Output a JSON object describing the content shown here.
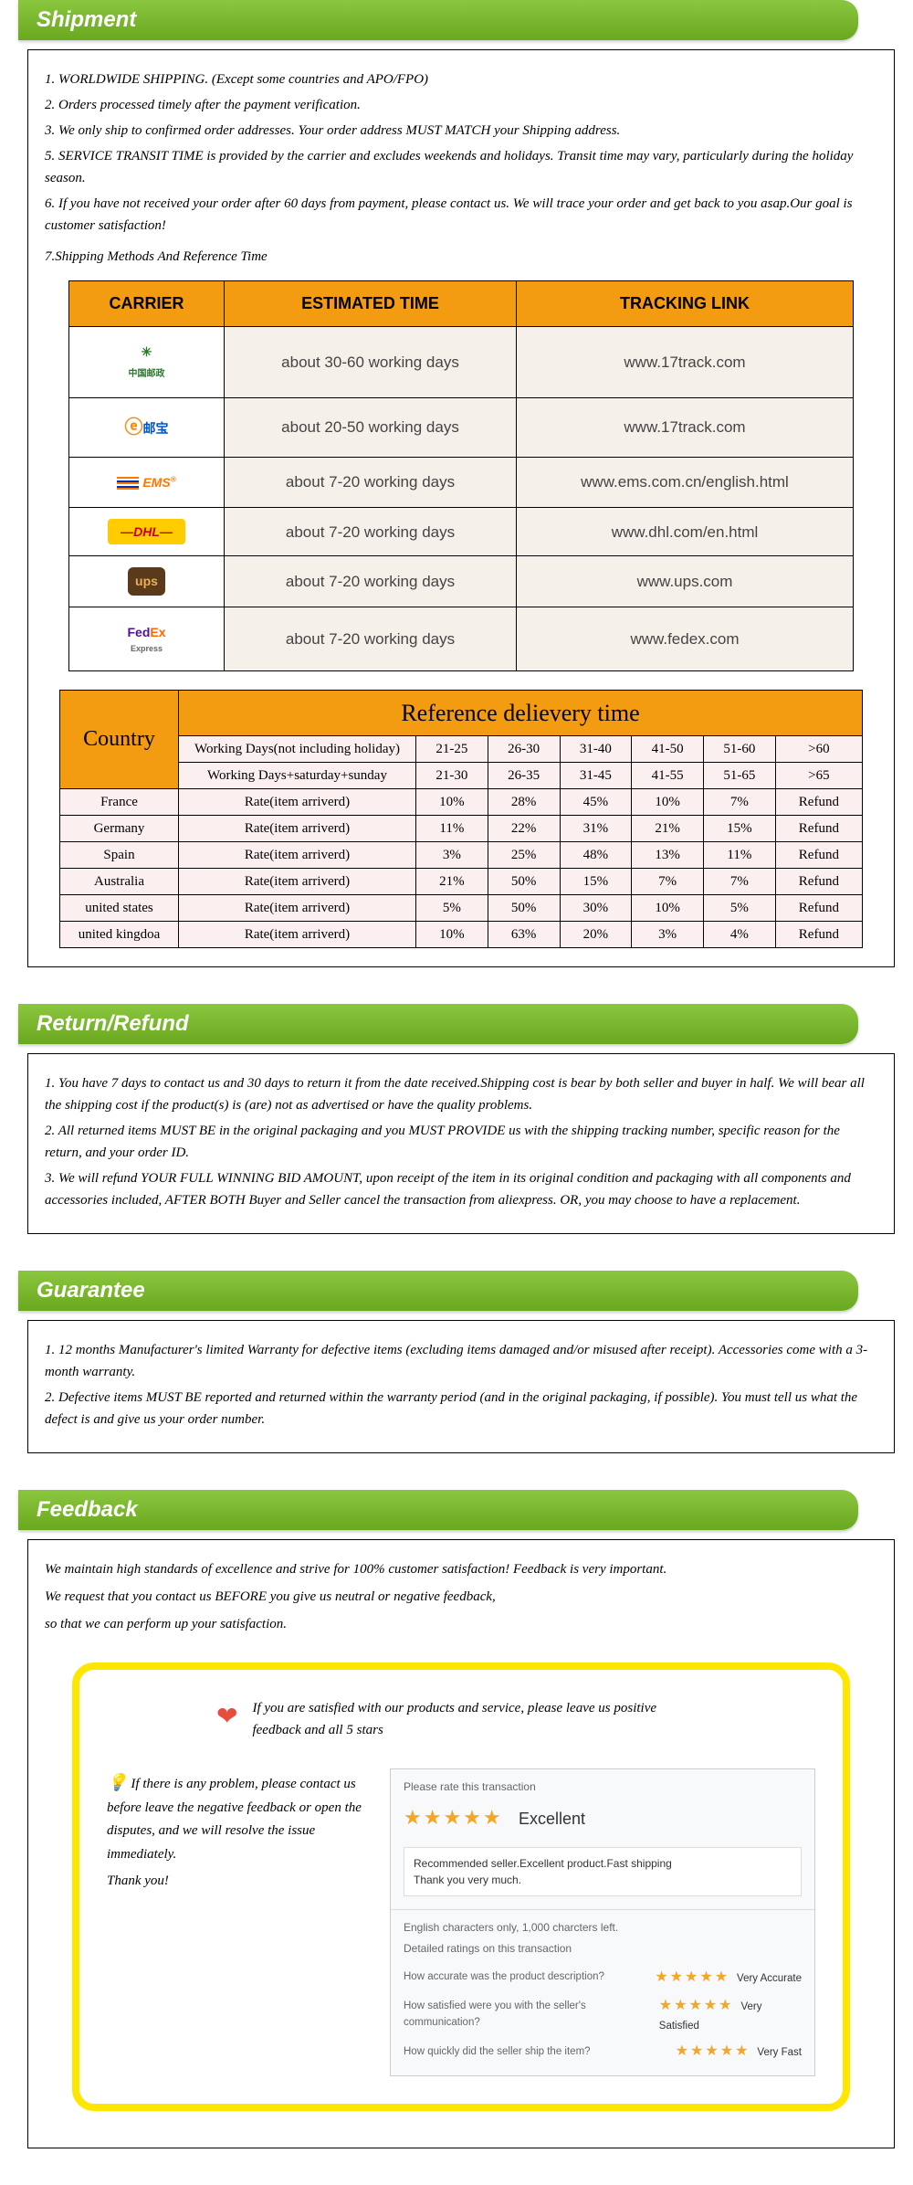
{
  "sections": {
    "shipment": {
      "title": "Shipment",
      "items": [
        "1. WORLDWIDE SHIPPING. (Except some countries and APO/FPO)",
        "2. Orders processed timely after the payment verification.",
        "3. We only ship to confirmed order addresses. Your order address MUST MATCH your Shipping address.",
        "5. SERVICE TRANSIT TIME is provided by the carrier and excludes weekends and holidays. Transit time may vary, particularly during the holiday season.",
        "6. If you have not received your order after 60 days from payment, please contact us. We will trace your order and get back to you asap.Our goal is customer satisfaction!",
        "7.Shipping Methods And Reference Time"
      ]
    },
    "return": {
      "title": "Return/Refund",
      "items": [
        "1. You have 7 days to contact us and 30 days to return it from the date received.Shipping cost is bear by both seller and buyer in half. We will bear all the shipping cost if the product(s) is (are) not as advertised or have the quality problems.",
        "2. All returned items MUST BE in the original packaging and you MUST PROVIDE us with the shipping tracking number, specific reason for the return, and your order ID.",
        "3. We will refund YOUR FULL WINNING BID AMOUNT, upon receipt of the item in its original condition and packaging with all components and accessories included, AFTER BOTH Buyer and Seller cancel the transaction from aliexpress. OR, you may choose to have a replacement."
      ]
    },
    "guarantee": {
      "title": "Guarantee",
      "items": [
        "1. 12 months Manufacturer's limited Warranty for defective items (excluding items damaged and/or misused after receipt). Accessories come with a 3-month warranty.",
        "2. Defective items MUST BE reported and returned within the warranty period (and in the original packaging, if possible). You must tell us what the defect is and give us your order number."
      ]
    },
    "feedback": {
      "title": "Feedback",
      "intro": [
        "We maintain high standards of excellence and strive for 100% customer satisfaction! Feedback is very important.",
        "We request that you contact us BEFORE you give us neutral or negative feedback,",
        "so that we can perform up your satisfaction."
      ],
      "satisfied": "If you are satisfied with our products and service, please leave us positive feedback and all 5 stars",
      "problem": "If there is any problem, please contact us before leave the negative feedback or open the disputes, and we will resolve the issue immediately.",
      "thank": "Thank you!"
    }
  },
  "carrier_table": {
    "headers": [
      "CARRIER",
      "ESTIMATED TIME",
      "TRACKING LINK"
    ],
    "rows": [
      {
        "logo": "chinapost",
        "label": "中国邮政",
        "time": "about 30-60 working days",
        "link": "www.17track.com"
      },
      {
        "logo": "epacket",
        "label": "e 邮宝",
        "time": "about 20-50 working days",
        "link": "www.17track.com"
      },
      {
        "logo": "ems",
        "label": "EMS",
        "time": "about 7-20 working days",
        "link": "www.ems.com.cn/english.html"
      },
      {
        "logo": "dhl",
        "label": "DHL",
        "time": "about 7-20 working days",
        "link": "www.dhl.com/en.html"
      },
      {
        "logo": "ups",
        "label": "ups",
        "time": "about 7-20 working days",
        "link": "www.ups.com"
      },
      {
        "logo": "fedex",
        "label": "FedEx",
        "time": "about 7-20 working days",
        "link": "www.fedex.com"
      }
    ]
  },
  "ref_table": {
    "title": "Reference delievery time",
    "country_h": "Country",
    "wd1_label": "Working Days(not including holiday)",
    "wd2_label": "Working Days+saturday+sunday",
    "wd1_cols": [
      "21-25",
      "26-30",
      "31-40",
      "41-50",
      "51-60",
      ">60"
    ],
    "wd2_cols": [
      "21-30",
      "26-35",
      "31-45",
      "41-55",
      "51-65",
      ">65"
    ],
    "rate_label": "Rate(item arriverd)",
    "rows": [
      {
        "country": "France",
        "rates": [
          "10%",
          "28%",
          "45%",
          "10%",
          "7%",
          "Refund"
        ]
      },
      {
        "country": "Germany",
        "rates": [
          "11%",
          "22%",
          "31%",
          "21%",
          "15%",
          "Refund"
        ]
      },
      {
        "country": "Spain",
        "rates": [
          "3%",
          "25%",
          "48%",
          "13%",
          "11%",
          "Refund"
        ]
      },
      {
        "country": "Australia",
        "rates": [
          "21%",
          "50%",
          "15%",
          "7%",
          "7%",
          "Refund"
        ]
      },
      {
        "country": "united states",
        "rates": [
          "5%",
          "50%",
          "30%",
          "10%",
          "5%",
          "Refund"
        ]
      },
      {
        "country": "united kingdoa",
        "rates": [
          "10%",
          "63%",
          "20%",
          "3%",
          "4%",
          "Refund"
        ]
      }
    ]
  },
  "rating_panel": {
    "head": "Please rate this transaction",
    "grade": "Excellent",
    "comment1": "Recommended seller.Excellent product.Fast shipping",
    "comment2": "Thank you very much.",
    "limit": "English characters only, 1,000 charcters left.",
    "detail_h": "Detailed ratings on this transaction",
    "q1": "How accurate was the product description?",
    "q2": "How satisfied were you with the seller's communication?",
    "q3": "How quickly did the seller ship the item?",
    "a1": "Very Accurate",
    "a2": "Very Satisfied",
    "a3": "Very Fast"
  },
  "colors": {
    "header_green_top": "#8bc63f",
    "header_green_bot": "#6aa81f",
    "orange": "#f39c12",
    "yellow_border": "#ffe600",
    "star": "#f5a623"
  }
}
